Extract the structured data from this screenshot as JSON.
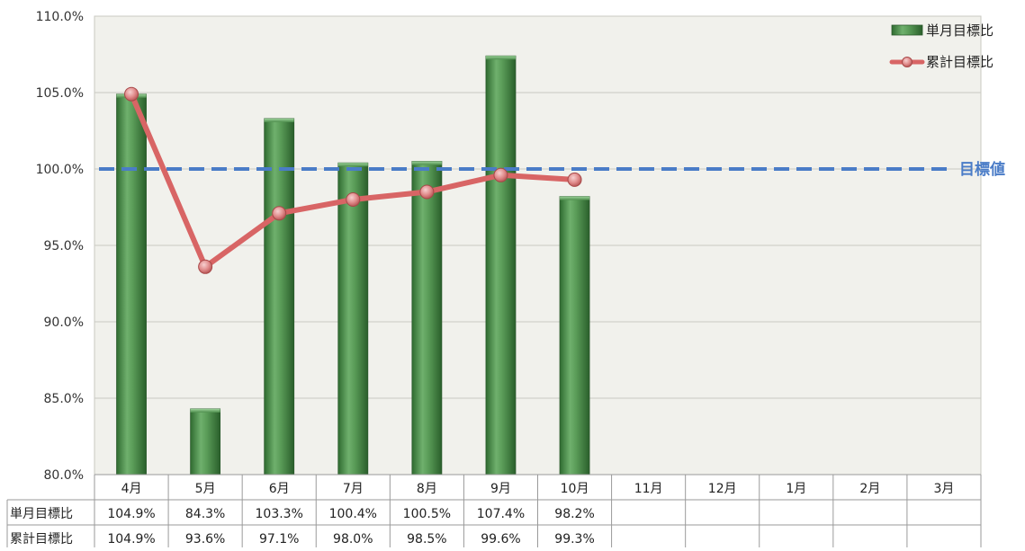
{
  "chart_data": {
    "type": "bar",
    "categories": [
      "4月",
      "5月",
      "6月",
      "7月",
      "8月",
      "9月",
      "10月",
      "11月",
      "12月",
      "1月",
      "2月",
      "3月"
    ],
    "series": [
      {
        "name": "単月目標比",
        "type": "bar",
        "values": [
          104.9,
          84.3,
          103.3,
          100.4,
          100.5,
          107.4,
          98.2,
          null,
          null,
          null,
          null,
          null
        ],
        "labels": [
          "104.9%",
          "84.3%",
          "103.3%",
          "100.4%",
          "100.5%",
          "107.4%",
          "98.2%",
          "",
          "",
          "",
          "",
          ""
        ],
        "color": "#4e8f4e"
      },
      {
        "name": "累計目標比",
        "type": "line",
        "values": [
          104.9,
          93.6,
          97.1,
          98.0,
          98.5,
          99.6,
          99.3,
          null,
          null,
          null,
          null,
          null
        ],
        "labels": [
          "104.9%",
          "93.6%",
          "97.1%",
          "98.0%",
          "98.5%",
          "99.6%",
          "99.3%",
          "",
          "",
          "",
          "",
          ""
        ],
        "color": "#d86565"
      }
    ],
    "target": {
      "label": "目標値",
      "value": 100.0,
      "color": "#4a7cc7"
    },
    "ylim": [
      80,
      110
    ],
    "yticks": [
      80,
      85,
      90,
      95,
      100,
      105,
      110
    ],
    "ytick_labels": [
      "80.0%",
      "85.0%",
      "90.0%",
      "95.0%",
      "100.0%",
      "105.0%",
      "110.0%"
    ],
    "grid": true,
    "legend_position": "top-right",
    "plot_background": "#f1f1ec",
    "data_table": true
  }
}
